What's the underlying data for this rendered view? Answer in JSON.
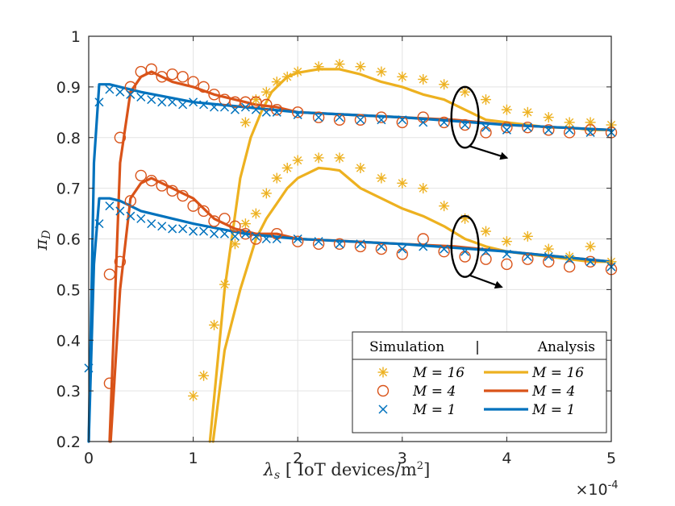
{
  "chart_data": {
    "type": "line",
    "title": "",
    "xlabel_symbol": "λ",
    "xlabel_sub": "s",
    "xlabel_text": " [ IoT devices/m",
    "xlabel_sup": "2",
    "xlabel_end": "]",
    "ylabel_symbol": "π",
    "ylabel_sub": "D",
    "x_multiplier_base": "×10",
    "x_multiplier_exp": "-4",
    "xlim": [
      0,
      5
    ],
    "ylim": [
      0.2,
      1
    ],
    "xticks": [
      "0",
      "1",
      "2",
      "3",
      "4",
      "5"
    ],
    "yticks": [
      "0.2",
      "0.3",
      "0.4",
      "0.5",
      "0.6",
      "0.7",
      "0.8",
      "0.9",
      "1"
    ],
    "grid": true,
    "legend": {
      "position": "bottom-right",
      "header_left": "Simulation",
      "header_sep": "|",
      "header_right": "Analysis",
      "entries": [
        {
          "sim": "M = 16",
          "ana": "M = 16",
          "color": "#EDB120",
          "marker": "asterisk"
        },
        {
          "sim": "M = 4",
          "ana": "M = 4",
          "color": "#D95319",
          "marker": "circle"
        },
        {
          "sim": "M = 1",
          "ana": "M = 1",
          "color": "#0072BD",
          "marker": "cross"
        }
      ]
    },
    "analysis_series": [
      {
        "name": "M = 16 (upper)",
        "color": "#EDB120",
        "x": [
          1.16,
          1.3,
          1.45,
          1.55,
          1.65,
          1.75,
          1.9,
          2.0,
          2.2,
          2.4,
          2.6,
          2.8,
          3.0,
          3.2,
          3.4,
          3.6,
          3.8,
          4.0,
          4.2,
          4.4,
          4.6,
          4.8,
          5.0
        ],
        "y": [
          0.2,
          0.5,
          0.72,
          0.8,
          0.85,
          0.89,
          0.92,
          0.928,
          0.935,
          0.935,
          0.925,
          0.91,
          0.9,
          0.885,
          0.875,
          0.855,
          0.835,
          0.83,
          0.825,
          0.82,
          0.82,
          0.815,
          0.815
        ]
      },
      {
        "name": "M = 16 (lower)",
        "color": "#EDB120",
        "x": [
          1.19,
          1.3,
          1.45,
          1.6,
          1.7,
          1.8,
          1.9,
          2.0,
          2.1,
          2.2,
          2.3,
          2.4,
          2.6,
          2.8,
          3.0,
          3.2,
          3.4,
          3.6,
          3.8,
          4.0,
          4.2,
          4.4,
          4.6,
          4.8,
          5.0
        ],
        "y": [
          0.2,
          0.38,
          0.5,
          0.6,
          0.64,
          0.67,
          0.7,
          0.72,
          0.73,
          0.74,
          0.738,
          0.735,
          0.7,
          0.68,
          0.66,
          0.645,
          0.625,
          0.6,
          0.585,
          0.575,
          0.57,
          0.565,
          0.56,
          0.555,
          0.555
        ]
      },
      {
        "name": "M = 4 (upper)",
        "color": "#D95319",
        "x": [
          0.2,
          0.3,
          0.4,
          0.5,
          0.6,
          0.7,
          0.8,
          1.0,
          1.2,
          1.4,
          1.6,
          1.8,
          2.0,
          2.5,
          3.0,
          3.5,
          4.0,
          4.5,
          5.0
        ],
        "y": [
          0.2,
          0.75,
          0.89,
          0.92,
          0.93,
          0.92,
          0.91,
          0.9,
          0.885,
          0.875,
          0.865,
          0.86,
          0.85,
          0.845,
          0.84,
          0.835,
          0.825,
          0.82,
          0.815
        ]
      },
      {
        "name": "M = 4 (lower)",
        "color": "#D95319",
        "x": [
          0.21,
          0.3,
          0.4,
          0.5,
          0.6,
          0.7,
          0.8,
          0.9,
          1.0,
          1.2,
          1.4,
          1.6,
          1.8,
          2.0,
          2.5,
          3.0,
          3.5,
          4.0,
          4.5,
          5.0
        ],
        "y": [
          0.2,
          0.5,
          0.68,
          0.71,
          0.72,
          0.71,
          0.7,
          0.69,
          0.68,
          0.64,
          0.62,
          0.61,
          0.61,
          0.6,
          0.595,
          0.59,
          0.585,
          0.575,
          0.565,
          0.555
        ]
      },
      {
        "name": "M = 1 (upper)",
        "color": "#0072BD",
        "x": [
          0.0,
          0.05,
          0.1,
          0.2,
          0.3,
          0.5,
          1.0,
          1.5,
          2.0,
          3.0,
          4.0,
          5.0
        ],
        "y": [
          0.2,
          0.75,
          0.905,
          0.905,
          0.9,
          0.89,
          0.87,
          0.86,
          0.85,
          0.84,
          0.825,
          0.815
        ]
      },
      {
        "name": "M = 1 (lower)",
        "color": "#0072BD",
        "x": [
          0.0,
          0.05,
          0.1,
          0.2,
          0.3,
          0.5,
          1.0,
          1.5,
          2.0,
          3.0,
          4.0,
          5.0
        ],
        "y": [
          0.2,
          0.55,
          0.68,
          0.68,
          0.675,
          0.655,
          0.63,
          0.61,
          0.6,
          0.59,
          0.575,
          0.555
        ]
      }
    ],
    "simulation_series": [
      {
        "name": "M = 16 sim (upper)",
        "marker": "asterisk",
        "color": "#EDB120",
        "x": [
          1.5,
          1.6,
          1.7,
          1.8,
          1.9,
          2.0,
          2.2,
          2.4,
          2.6,
          2.8,
          3.0,
          3.2,
          3.4,
          3.6,
          3.8,
          4.0,
          4.2,
          4.4,
          4.6,
          4.8,
          5.0
        ],
        "y": [
          0.83,
          0.875,
          0.89,
          0.91,
          0.92,
          0.93,
          0.94,
          0.945,
          0.94,
          0.93,
          0.92,
          0.915,
          0.905,
          0.89,
          0.875,
          0.855,
          0.85,
          0.84,
          0.83,
          0.83,
          0.825
        ]
      },
      {
        "name": "M = 16 sim (lower)",
        "marker": "asterisk",
        "color": "#EDB120",
        "x": [
          1.0,
          1.1,
          1.2,
          1.3,
          1.4,
          1.5,
          1.6,
          1.7,
          1.8,
          1.9,
          2.0,
          2.2,
          2.4,
          2.6,
          2.8,
          3.0,
          3.2,
          3.4,
          3.6,
          3.8,
          4.0,
          4.2,
          4.4,
          4.6,
          4.8,
          5.0
        ],
        "y": [
          0.29,
          0.33,
          0.43,
          0.51,
          0.59,
          0.63,
          0.65,
          0.69,
          0.72,
          0.74,
          0.755,
          0.76,
          0.76,
          0.74,
          0.72,
          0.71,
          0.7,
          0.665,
          0.64,
          0.615,
          0.595,
          0.605,
          0.58,
          0.565,
          0.585,
          0.555
        ]
      },
      {
        "name": "M = 4 sim (upper)",
        "marker": "circle",
        "color": "#D95319",
        "x": [
          0.2,
          0.3,
          0.4,
          0.5,
          0.6,
          0.7,
          0.8,
          0.9,
          1.0,
          1.1,
          1.2,
          1.3,
          1.4,
          1.5,
          1.6,
          1.7,
          1.8,
          2.0,
          2.2,
          2.4,
          2.6,
          2.8,
          3.0,
          3.2,
          3.4,
          3.6,
          3.8,
          4.0,
          4.2,
          4.4,
          4.6,
          4.8,
          5.0
        ],
        "y": [
          0.315,
          0.8,
          0.9,
          0.93,
          0.935,
          0.92,
          0.925,
          0.92,
          0.91,
          0.9,
          0.885,
          0.875,
          0.87,
          0.87,
          0.87,
          0.865,
          0.855,
          0.85,
          0.84,
          0.835,
          0.835,
          0.84,
          0.83,
          0.84,
          0.83,
          0.825,
          0.81,
          0.82,
          0.82,
          0.815,
          0.81,
          0.815,
          0.81
        ]
      },
      {
        "name": "M = 4 sim (lower)",
        "marker": "circle",
        "color": "#D95319",
        "x": [
          0.2,
          0.3,
          0.4,
          0.5,
          0.6,
          0.7,
          0.8,
          0.9,
          1.0,
          1.1,
          1.2,
          1.3,
          1.4,
          1.5,
          1.6,
          1.8,
          2.0,
          2.2,
          2.4,
          2.6,
          2.8,
          3.0,
          3.2,
          3.4,
          3.6,
          3.8,
          4.0,
          4.2,
          4.4,
          4.6,
          4.8,
          5.0
        ],
        "y": [
          0.53,
          0.555,
          0.675,
          0.725,
          0.715,
          0.705,
          0.695,
          0.685,
          0.665,
          0.655,
          0.635,
          0.64,
          0.625,
          0.61,
          0.6,
          0.61,
          0.595,
          0.59,
          0.59,
          0.585,
          0.58,
          0.57,
          0.6,
          0.575,
          0.565,
          0.56,
          0.55,
          0.56,
          0.555,
          0.545,
          0.555,
          0.54
        ]
      },
      {
        "name": "M = 1 sim (upper)",
        "marker": "cross",
        "color": "#0072BD",
        "x": [
          0.1,
          0.2,
          0.3,
          0.4,
          0.5,
          0.6,
          0.7,
          0.8,
          0.9,
          1.0,
          1.1,
          1.2,
          1.3,
          1.4,
          1.5,
          1.6,
          1.7,
          1.8,
          2.0,
          2.2,
          2.4,
          2.6,
          2.8,
          3.0,
          3.2,
          3.4,
          3.6,
          3.8,
          4.0,
          4.2,
          4.4,
          4.6,
          4.8,
          5.0
        ],
        "y": [
          0.87,
          0.895,
          0.89,
          0.885,
          0.88,
          0.875,
          0.87,
          0.87,
          0.865,
          0.87,
          0.865,
          0.86,
          0.86,
          0.855,
          0.86,
          0.855,
          0.85,
          0.85,
          0.845,
          0.84,
          0.84,
          0.835,
          0.835,
          0.835,
          0.83,
          0.83,
          0.825,
          0.82,
          0.815,
          0.82,
          0.815,
          0.815,
          0.81,
          0.81
        ]
      },
      {
        "name": "M = 1 sim (lower)",
        "marker": "cross",
        "color": "#0072BD",
        "x": [
          0.0,
          0.1,
          0.2,
          0.3,
          0.4,
          0.5,
          0.6,
          0.7,
          0.8,
          0.9,
          1.0,
          1.1,
          1.2,
          1.3,
          1.4,
          1.5,
          1.6,
          1.7,
          1.8,
          2.0,
          2.2,
          2.4,
          2.6,
          2.8,
          3.0,
          3.2,
          3.4,
          3.6,
          3.8,
          4.0,
          4.2,
          4.4,
          4.6,
          4.8,
          5.0
        ],
        "y": [
          0.345,
          0.63,
          0.665,
          0.655,
          0.645,
          0.64,
          0.63,
          0.625,
          0.62,
          0.62,
          0.615,
          0.615,
          0.61,
          0.61,
          0.605,
          0.61,
          0.605,
          0.6,
          0.6,
          0.6,
          0.595,
          0.59,
          0.59,
          0.585,
          0.58,
          0.585,
          0.58,
          0.575,
          0.575,
          0.57,
          0.565,
          0.565,
          0.56,
          0.555,
          0.545
        ]
      }
    ],
    "annotations": [
      {
        "type": "ellipse-arrow",
        "x": 3.6,
        "y": 0.84,
        "rx_data": 0.13,
        "ry_data": 0.06,
        "arrow_to": [
          4.0,
          0.76
        ]
      },
      {
        "type": "ellipse-arrow",
        "x": 3.6,
        "y": 0.585,
        "rx_data": 0.13,
        "ry_data": 0.06,
        "arrow_to": [
          3.95,
          0.505
        ]
      }
    ]
  }
}
